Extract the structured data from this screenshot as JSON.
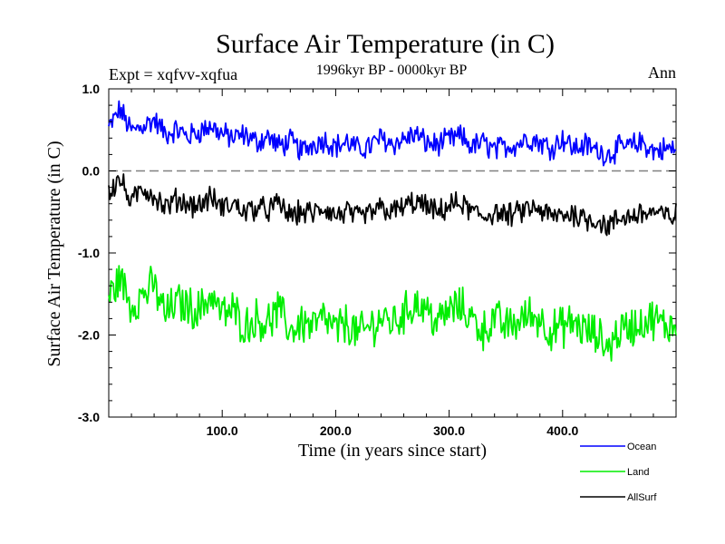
{
  "chart_data": {
    "type": "line",
    "title": "Surface Air Temperature (in C)",
    "subtitle": "1996kyr BP - 0000kyr BP",
    "left_annotation": "Expt = xqfvv-xqfua",
    "right_annotation": "Ann",
    "xlabel": "Time (in years since start)",
    "ylabel": "Surface Air Temperature (in C)",
    "xlim": [
      0,
      500
    ],
    "ylim": [
      -3.0,
      1.0
    ],
    "x_ticks": [
      100,
      200,
      300,
      400
    ],
    "x_tick_labels": [
      "100.0",
      "200.0",
      "300.0",
      "400.0"
    ],
    "y_ticks": [
      1.0,
      0.0,
      -1.0,
      -2.0,
      -3.0
    ],
    "y_tick_labels": [
      "1.0",
      "0.0",
      "-1.0",
      "-2.0",
      "-3.0"
    ],
    "reference_line": {
      "y": 0.0,
      "style": "dashed",
      "color": "#808080"
    },
    "legend_position": "bottom-right",
    "series": [
      {
        "name": "Ocean",
        "color": "#0000ff",
        "x": [
          0,
          10,
          20,
          30,
          40,
          50,
          60,
          70,
          80,
          90,
          100,
          110,
          120,
          130,
          140,
          150,
          160,
          170,
          180,
          190,
          200,
          210,
          220,
          230,
          240,
          250,
          260,
          270,
          280,
          290,
          300,
          310,
          320,
          330,
          340,
          350,
          360,
          370,
          380,
          390,
          400,
          410,
          420,
          430,
          440,
          450,
          460,
          470,
          480,
          490,
          500
        ],
        "values": [
          0.52,
          0.75,
          0.48,
          0.55,
          0.62,
          0.45,
          0.5,
          0.42,
          0.48,
          0.55,
          0.45,
          0.4,
          0.44,
          0.35,
          0.42,
          0.3,
          0.36,
          0.24,
          0.33,
          0.38,
          0.3,
          0.35,
          0.26,
          0.3,
          0.4,
          0.33,
          0.38,
          0.45,
          0.34,
          0.32,
          0.38,
          0.42,
          0.3,
          0.34,
          0.25,
          0.3,
          0.33,
          0.4,
          0.35,
          0.28,
          0.4,
          0.27,
          0.32,
          0.25,
          0.2,
          0.28,
          0.3,
          0.35,
          0.24,
          0.27,
          0.26
        ]
      },
      {
        "name": "Land",
        "color": "#00ee00",
        "x": [
          0,
          10,
          20,
          30,
          40,
          50,
          60,
          70,
          80,
          90,
          100,
          110,
          120,
          130,
          140,
          150,
          160,
          170,
          180,
          190,
          200,
          210,
          220,
          230,
          240,
          250,
          260,
          270,
          280,
          290,
          300,
          310,
          320,
          330,
          340,
          350,
          360,
          370,
          380,
          390,
          400,
          410,
          420,
          430,
          440,
          450,
          460,
          470,
          480,
          490,
          500
        ],
        "values": [
          -1.55,
          -1.3,
          -1.65,
          -1.5,
          -1.4,
          -1.75,
          -1.6,
          -1.65,
          -1.7,
          -1.5,
          -1.75,
          -1.7,
          -1.9,
          -1.8,
          -1.85,
          -1.7,
          -1.95,
          -1.85,
          -1.9,
          -1.8,
          -1.95,
          -1.85,
          -2.0,
          -1.9,
          -1.8,
          -1.85,
          -1.75,
          -1.6,
          -1.7,
          -1.85,
          -1.7,
          -1.65,
          -1.8,
          -1.95,
          -1.8,
          -1.9,
          -1.85,
          -1.75,
          -1.8,
          -1.95,
          -1.9,
          -1.85,
          -1.95,
          -2.0,
          -2.15,
          -1.95,
          -1.9,
          -1.85,
          -1.8,
          -1.9,
          -1.85
        ]
      },
      {
        "name": "AllSurf",
        "color": "#000000",
        "x": [
          0,
          10,
          20,
          30,
          40,
          50,
          60,
          70,
          80,
          90,
          100,
          110,
          120,
          130,
          140,
          150,
          160,
          170,
          180,
          190,
          200,
          210,
          220,
          230,
          240,
          250,
          260,
          270,
          280,
          290,
          300,
          310,
          320,
          330,
          340,
          350,
          360,
          370,
          380,
          390,
          400,
          410,
          420,
          430,
          440,
          450,
          460,
          470,
          480,
          490,
          500
        ],
        "values": [
          -0.25,
          -0.1,
          -0.4,
          -0.2,
          -0.3,
          -0.45,
          -0.35,
          -0.4,
          -0.42,
          -0.32,
          -0.45,
          -0.4,
          -0.5,
          -0.45,
          -0.48,
          -0.4,
          -0.55,
          -0.5,
          -0.52,
          -0.45,
          -0.55,
          -0.5,
          -0.58,
          -0.52,
          -0.45,
          -0.5,
          -0.44,
          -0.38,
          -0.44,
          -0.52,
          -0.42,
          -0.4,
          -0.5,
          -0.56,
          -0.5,
          -0.55,
          -0.52,
          -0.46,
          -0.48,
          -0.56,
          -0.54,
          -0.52,
          -0.58,
          -0.6,
          -0.68,
          -0.58,
          -0.55,
          -0.52,
          -0.5,
          -0.56,
          -0.54
        ]
      }
    ]
  }
}
